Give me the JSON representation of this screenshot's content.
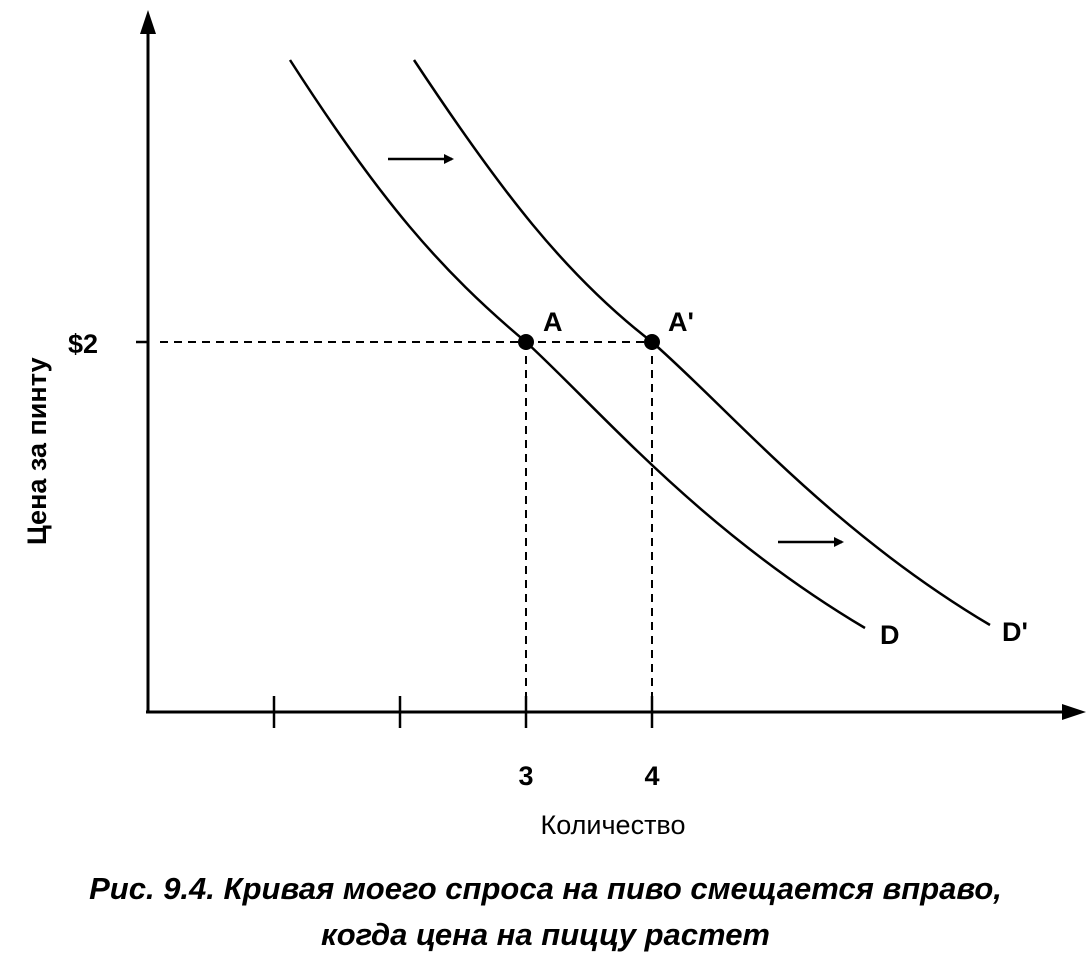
{
  "chart_data": {
    "type": "line",
    "xlabel": "Количество",
    "ylabel": "Цена за пинту",
    "x_ticks": [
      1,
      2,
      3,
      4
    ],
    "x_tick_labels": [
      "",
      "",
      "3",
      "4"
    ],
    "y_tick_label": "$2",
    "y_tick_value": 2,
    "series": [
      {
        "name": "D",
        "points": [
          [
            1.15,
            5.2
          ],
          [
            2,
            3.65
          ],
          [
            3,
            2
          ],
          [
            4,
            1.0
          ],
          [
            5.7,
            0.25
          ]
        ]
      },
      {
        "name": "D'",
        "points": [
          [
            2.1,
            5.2
          ],
          [
            3,
            3.6
          ],
          [
            4,
            2
          ],
          [
            5,
            1.0
          ],
          [
            6.65,
            0.25
          ]
        ]
      }
    ],
    "points": [
      {
        "label": "A",
        "x": 3,
        "y": 2
      },
      {
        "label": "A'",
        "x": 4,
        "y": 2
      }
    ],
    "shift_direction": "right"
  },
  "caption": {
    "line1": "Рис. 9.4. Кривая моего спроса на пиво смещается вправо,",
    "line2": "когда цена на пиццу растет"
  }
}
